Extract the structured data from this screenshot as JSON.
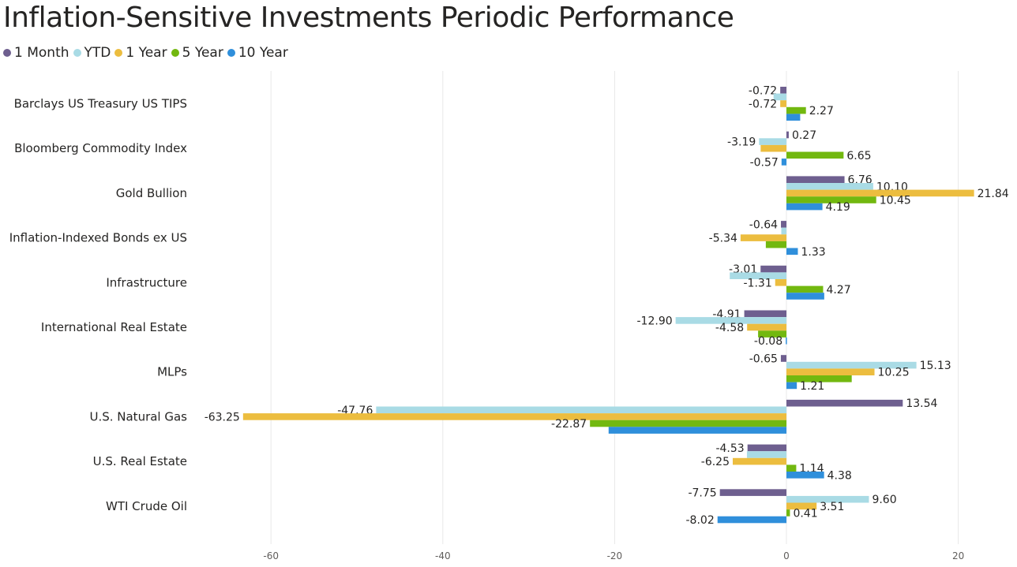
{
  "chart_data": {
    "type": "bar",
    "orientation": "horizontal",
    "title": "Inflation-Sensitive Investments Periodic Performance",
    "categories": [
      "Barclays US Treasury US TIPS",
      "Bloomberg Commodity Index",
      "Gold Bullion",
      "Inflation-Indexed Bonds ex US",
      "Infrastructure",
      "International Real Estate",
      "MLPs",
      "U.S. Natural Gas",
      "U.S. Real Estate",
      "WTI Crude Oil"
    ],
    "series": [
      {
        "name": "1 Month",
        "color": "#6e5f8f",
        "values": [
          -0.72,
          0.27,
          6.76,
          -0.64,
          -3.01,
          -4.91,
          -0.65,
          13.54,
          -4.53,
          -7.75
        ],
        "labels": [
          "-0.72",
          "0.27",
          "6.76",
          "-0.64",
          "-3.01",
          "-4.91",
          "-0.65",
          "13.54",
          "-4.53",
          "-7.75"
        ]
      },
      {
        "name": "YTD",
        "color": "#a9dbe5",
        "values": [
          -1.5,
          -3.19,
          10.1,
          -0.6,
          -6.6,
          -12.9,
          15.13,
          -47.76,
          -4.6,
          9.6
        ],
        "labels": [
          "",
          "-3.19",
          "10.10",
          "",
          "",
          "-12.90",
          "15.13",
          "-47.76",
          "",
          "9.60"
        ]
      },
      {
        "name": "1 Year",
        "color": "#ecbd3f",
        "values": [
          -0.72,
          -3.0,
          21.84,
          -5.34,
          -1.31,
          -4.58,
          10.25,
          -63.25,
          -6.25,
          3.51
        ],
        "labels": [
          "-0.72",
          "",
          "21.84",
          "-5.34",
          "-1.31",
          "-4.58",
          "10.25",
          "-63.25",
          "-6.25",
          "3.51"
        ]
      },
      {
        "name": "5 Year",
        "color": "#72b80f",
        "values": [
          2.27,
          6.65,
          10.45,
          -2.4,
          4.27,
          -3.3,
          7.6,
          -22.87,
          1.14,
          0.41
        ],
        "labels": [
          "2.27",
          "6.65",
          "10.45",
          "",
          "4.27",
          "",
          "",
          "-22.87",
          "1.14",
          "0.41"
        ]
      },
      {
        "name": "10 Year",
        "color": "#2f8fdb",
        "values": [
          1.6,
          -0.57,
          4.19,
          1.33,
          4.4,
          -0.08,
          1.21,
          -20.7,
          4.38,
          -8.02
        ],
        "labels": [
          "",
          "-0.57",
          "4.19",
          "1.33",
          "",
          "-0.08",
          "1.21",
          "",
          "4.38",
          "-8.02"
        ]
      }
    ],
    "xlim": [
      -72,
      25
    ],
    "xticks": [
      -60,
      -40,
      -20,
      0,
      20
    ],
    "xlabel": "",
    "ylabel": "",
    "grid": true,
    "legend_position": "top-left"
  }
}
